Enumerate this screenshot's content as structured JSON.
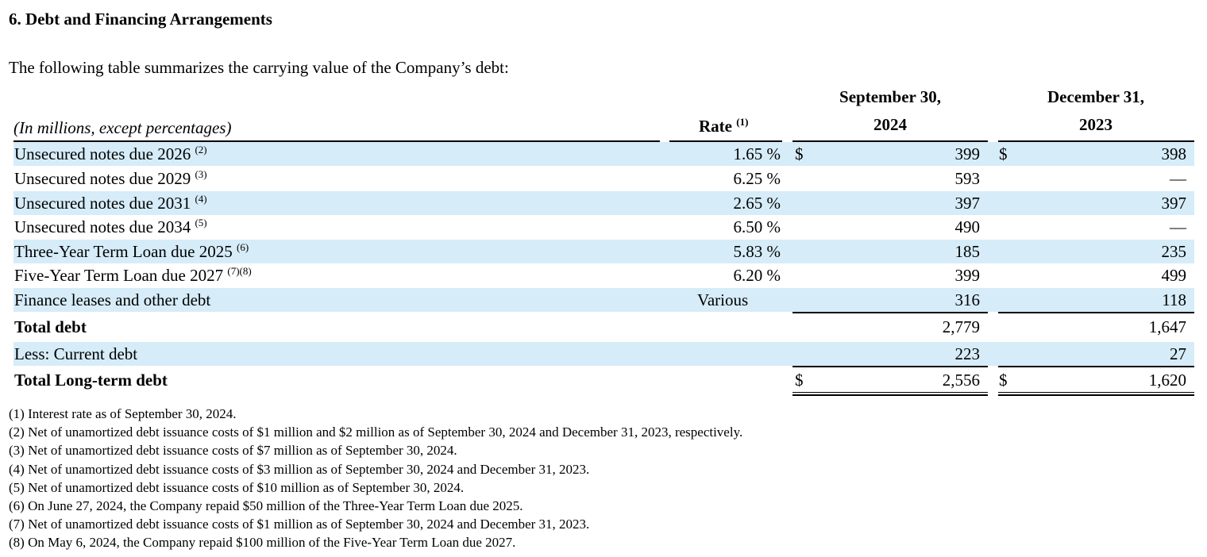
{
  "section_title": "6. Debt and Financing Arrangements",
  "intro_text": "The following table summarizes the carrying value of the Company’s debt:",
  "table": {
    "units_note": "(In millions, except percentages)",
    "rate_header": "Rate",
    "rate_header_note": "(1)",
    "col1_header_line1": "September 30,",
    "col1_header_line2": "2024",
    "col2_header_line1": "December 31,",
    "col2_header_line2": "2023",
    "rows": [
      {
        "label": "Unsecured notes due 2026",
        "note": "(2)",
        "rate": "1.65 %",
        "dollar1": "$",
        "v2024": "399",
        "dollar2": "$",
        "v2023": "398"
      },
      {
        "label": "Unsecured notes due 2029",
        "note": "(3)",
        "rate": "6.25 %",
        "dollar1": "",
        "v2024": "593",
        "dollar2": "",
        "v2023": "—"
      },
      {
        "label": "Unsecured notes due 2031",
        "note": "(4)",
        "rate": "2.65 %",
        "dollar1": "",
        "v2024": "397",
        "dollar2": "",
        "v2023": "397"
      },
      {
        "label": "Unsecured notes due 2034",
        "note": "(5)",
        "rate": "6.50 %",
        "dollar1": "",
        "v2024": "490",
        "dollar2": "",
        "v2023": "—"
      },
      {
        "label": "Three-Year Term Loan due 2025",
        "note": "(6)",
        "rate": "5.83 %",
        "dollar1": "",
        "v2024": "185",
        "dollar2": "",
        "v2023": "235"
      },
      {
        "label": "Five-Year Term Loan due 2027",
        "note": "(7)(8)",
        "rate": "6.20 %",
        "dollar1": "",
        "v2024": "399",
        "dollar2": "",
        "v2023": "499"
      },
      {
        "label": "Finance leases and other debt",
        "note": "",
        "rate": "Various",
        "dollar1": "",
        "v2024": "316",
        "dollar2": "",
        "v2023": "118"
      },
      {
        "label": "Total debt",
        "note": "",
        "rate": "",
        "dollar1": "",
        "v2024": "2,779",
        "dollar2": "",
        "v2023": "1,647"
      },
      {
        "label": "Less: Current debt",
        "note": "",
        "rate": "",
        "dollar1": "",
        "v2024": "223",
        "dollar2": "",
        "v2023": "27"
      },
      {
        "label": "Total Long-term debt",
        "note": "",
        "rate": "",
        "dollar1": "$",
        "v2024": "2,556",
        "dollar2": "$",
        "v2023": "1,620"
      }
    ]
  },
  "footnotes": [
    "(1) Interest rate as of September 30, 2024.",
    "(2) Net of unamortized debt issuance costs of $1 million and $2 million as of September 30, 2024 and December 31, 2023, respectively.",
    "(3) Net of unamortized debt issuance costs of $7 million as of September 30, 2024.",
    "(4) Net of unamortized debt issuance costs of $3 million as of September 30, 2024 and December 31, 2023.",
    "(5) Net of unamortized debt issuance costs of $10 million as of September 30, 2024.",
    "(6) On June 27, 2024, the Company repaid $50 million of the Three-Year Term Loan due 2025.",
    "(7) Net of unamortized debt issuance costs of $1 million as of September 30, 2024 and December 31, 2023.",
    "(8) On May 6, 2024, the Company repaid $100 million of the Five-Year Term Loan due 2027."
  ],
  "colors": {
    "row_shade": "#d6ecf8"
  }
}
